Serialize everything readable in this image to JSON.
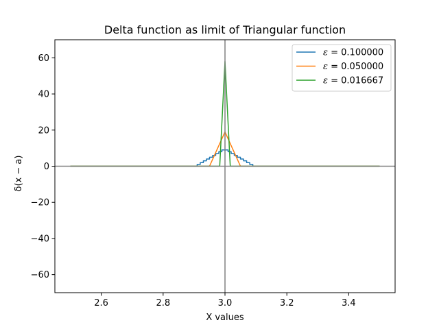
{
  "chart_data": {
    "type": "line",
    "title": "Delta function as limit of Triangular function",
    "xlabel": "X values",
    "ylabel": "δ(x − a)",
    "xlim": [
      2.45,
      3.55
    ],
    "ylim": [
      -70,
      70
    ],
    "xticks": [
      2.6,
      2.8,
      3.0,
      3.2,
      3.4
    ],
    "xtick_labels": [
      "2.6",
      "2.8",
      "3.0",
      "3.2",
      "3.4"
    ],
    "yticks": [
      -60,
      -40,
      -20,
      0,
      20,
      40,
      60
    ],
    "ytick_labels": [
      "−60",
      "−40",
      "−20",
      "0",
      "20",
      "40",
      "60"
    ],
    "reference_lines": {
      "x": 3.0,
      "y": 0,
      "color": "#808080"
    },
    "legend_position": "top-right",
    "series": [
      {
        "name": "ε = 0.100000",
        "label_eps": "0.100000",
        "color": "#1f77b4",
        "x": [
          2.5,
          2.91,
          2.91,
          2.92,
          2.92,
          2.93,
          2.93,
          2.94,
          2.94,
          2.95,
          2.95,
          2.96,
          2.96,
          2.97,
          2.97,
          2.98,
          2.98,
          2.99,
          2.99,
          3.01,
          3.01,
          3.02,
          3.02,
          3.03,
          3.03,
          3.04,
          3.04,
          3.05,
          3.05,
          3.06,
          3.06,
          3.07,
          3.07,
          3.08,
          3.08,
          3.09,
          3.09,
          3.5
        ],
        "y": [
          0,
          0,
          1,
          1,
          2,
          2,
          3,
          3,
          4,
          4,
          5,
          5,
          6,
          6,
          7,
          7,
          8,
          8,
          9,
          9,
          8,
          8,
          7,
          7,
          6,
          6,
          5,
          5,
          4,
          4,
          3,
          3,
          2,
          2,
          1,
          1,
          0,
          0
        ]
      },
      {
        "name": "ε = 0.050000",
        "label_eps": "0.050000",
        "color": "#ff7f0e",
        "x": [
          2.5,
          2.95,
          3.0,
          3.05,
          3.5
        ],
        "y": [
          0,
          0,
          19,
          0,
          0
        ]
      },
      {
        "name": "ε = 0.016667",
        "label_eps": "0.016667",
        "color": "#2ca02c",
        "x": [
          2.5,
          2.983,
          3.0,
          3.017,
          3.5
        ],
        "y": [
          0,
          0,
          58,
          0,
          0
        ]
      }
    ]
  }
}
